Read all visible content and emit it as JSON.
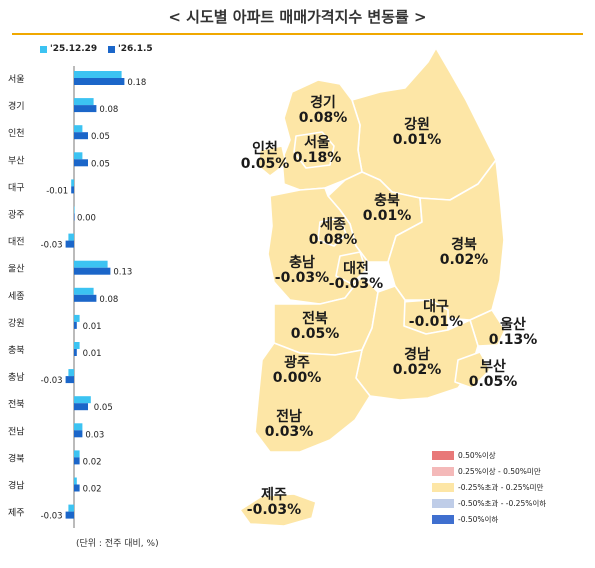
{
  "title": "< 시도별 아파트 매매가격지수 변동률 >",
  "colors": {
    "prev": "#3cc3f2",
    "curr": "#1b66c9",
    "accent": "#f0a800",
    "map_fill": "#fde6a6",
    "map_border": "#ffffff"
  },
  "chart_data": {
    "type": "bar",
    "orientation": "horizontal",
    "series": [
      {
        "name": "'25.12.29",
        "values": [
          0.17,
          0.07,
          0.03,
          0.03,
          -0.01,
          0.0,
          -0.02,
          0.12,
          0.07,
          0.02,
          0.02,
          -0.02,
          0.06,
          0.03,
          0.02,
          0.01,
          -0.02
        ]
      },
      {
        "name": "'26.1.5",
        "values": [
          0.18,
          0.08,
          0.05,
          0.05,
          -0.01,
          0.0,
          -0.03,
          0.13,
          0.08,
          0.01,
          0.01,
          -0.03,
          0.05,
          0.03,
          0.02,
          0.02,
          -0.03
        ]
      }
    ],
    "categories": [
      "서울",
      "경기",
      "인천",
      "부산",
      "대구",
      "광주",
      "대전",
      "울산",
      "세종",
      "강원",
      "충북",
      "충남",
      "전북",
      "전남",
      "경북",
      "경남",
      "제주"
    ],
    "data_labels": [
      "0.18",
      "0.08",
      "0.05",
      "0.05",
      "-0.01",
      "0.00",
      "-0.03",
      "0.13",
      "0.08",
      "0.01",
      "0.01",
      "-0.03",
      "0.05",
      "0.03",
      "0.02",
      "0.02",
      "-0.03"
    ],
    "unit_note": "(단위 : 전주 대비, %)"
  },
  "map": {
    "regions": [
      {
        "name": "경기",
        "value": "0.08%"
      },
      {
        "name": "강원",
        "value": "0.01%"
      },
      {
        "name": "인천",
        "value": "0.05%"
      },
      {
        "name": "서울",
        "value": "0.18%"
      },
      {
        "name": "충북",
        "value": "0.01%"
      },
      {
        "name": "세종",
        "value": "0.08%"
      },
      {
        "name": "경북",
        "value": "0.02%"
      },
      {
        "name": "충남",
        "value": "-0.03%"
      },
      {
        "name": "대전",
        "value": "-0.03%"
      },
      {
        "name": "전북",
        "value": "0.05%"
      },
      {
        "name": "대구",
        "value": "-0.01%"
      },
      {
        "name": "울산",
        "value": "0.13%"
      },
      {
        "name": "경남",
        "value": "0.02%"
      },
      {
        "name": "광주",
        "value": "0.00%"
      },
      {
        "name": "부산",
        "value": "0.05%"
      },
      {
        "name": "전남",
        "value": "0.03%"
      },
      {
        "name": "제주",
        "value": "-0.03%"
      }
    ],
    "scale": [
      {
        "label": "0.50%이상",
        "color": "#e87878"
      },
      {
        "label": "0.25%이상 - 0.50%미만",
        "color": "#f4b9b9"
      },
      {
        "label": "-0.25%초과 - 0.25%미만",
        "color": "#fde6a6"
      },
      {
        "label": "-0.50%초과 - -0.25%이하",
        "color": "#bfcde8"
      },
      {
        "label": "-0.50%이하",
        "color": "#3f6fcf"
      }
    ]
  }
}
